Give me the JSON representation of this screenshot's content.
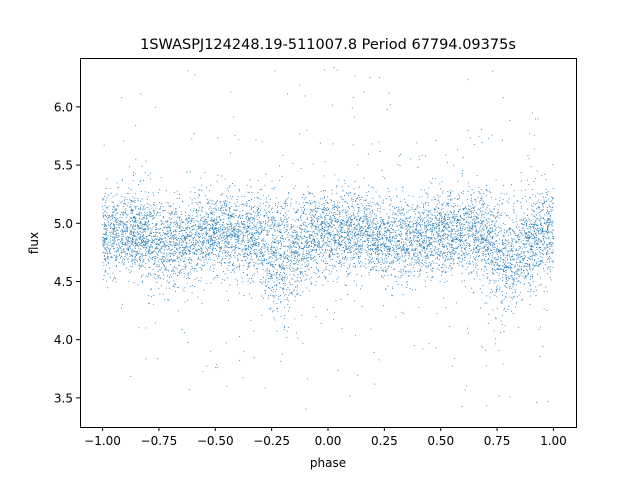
{
  "chart_data": {
    "type": "scatter",
    "title": "1SWASPJ124248.19-511007.8 Period 67794.09375s",
    "xlabel": "phase",
    "ylabel": "flux",
    "xlim": [
      -1.1,
      1.1
    ],
    "ylim": [
      3.25,
      6.42
    ],
    "x_ticks": [
      -1.0,
      -0.75,
      -0.5,
      -0.25,
      0.0,
      0.25,
      0.5,
      0.75,
      1.0
    ],
    "x_tick_labels": [
      "−1.00",
      "−0.75",
      "−0.50",
      "−0.25",
      "0.00",
      "0.25",
      "0.50",
      "0.75",
      "1.00"
    ],
    "y_ticks": [
      3.5,
      4.0,
      4.5,
      5.0,
      5.5,
      6.0
    ],
    "y_tick_labels": [
      "3.5",
      "4.0",
      "4.5",
      "5.0",
      "5.5",
      "6.0"
    ],
    "grid": false,
    "legend": "none",
    "marker_color": "#1f77b4",
    "series": [
      {
        "phase_range": [
          -1.0,
          1.0
        ],
        "baseline_flux": 4.92,
        "flux_scatter_sd": 0.17,
        "primary_dip_phases": [
          -0.2,
          0.8
        ],
        "primary_dip_flux": 4.7,
        "secondary_dip_phases": [
          -0.7,
          0.3
        ],
        "secondary_dip_flux": 4.83,
        "flux_min": 3.4,
        "flux_max": 6.35
      }
    ]
  }
}
